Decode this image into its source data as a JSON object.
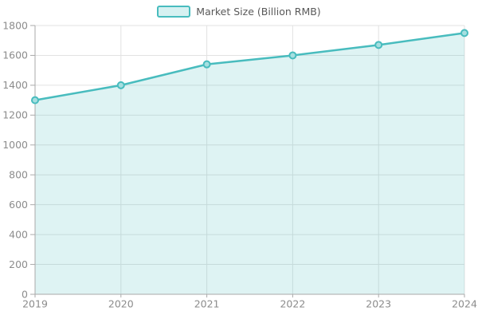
{
  "legend": {
    "label": "Market Size (Billion RMB)",
    "swatch_fill": "#d6f1f1",
    "swatch_border": "#48bcbe"
  },
  "chart_data": {
    "type": "area",
    "categories": [
      "2019",
      "2020",
      "2021",
      "2022",
      "2023",
      "2024"
    ],
    "series": [
      {
        "name": "Market Size (Billion RMB)",
        "values": [
          1300,
          1400,
          1540,
          1600,
          1670,
          1750
        ]
      }
    ],
    "title": "",
    "xlabel": "",
    "ylabel": "",
    "ylim": [
      0,
      1800
    ],
    "yticks": [
      0,
      200,
      400,
      600,
      800,
      1000,
      1200,
      1400,
      1600,
      1800
    ],
    "grid": true,
    "legend_position": "top-center",
    "markers": true,
    "colors": {
      "line": "#48bcbe",
      "area_fill": "rgba(72,188,190,0.18)",
      "marker_fill": "#a6dfe0",
      "grid": "#e2e2e2",
      "axis": "#aaaaaa",
      "tick_label": "#8c8c8c",
      "legend_text": "#595959"
    }
  }
}
